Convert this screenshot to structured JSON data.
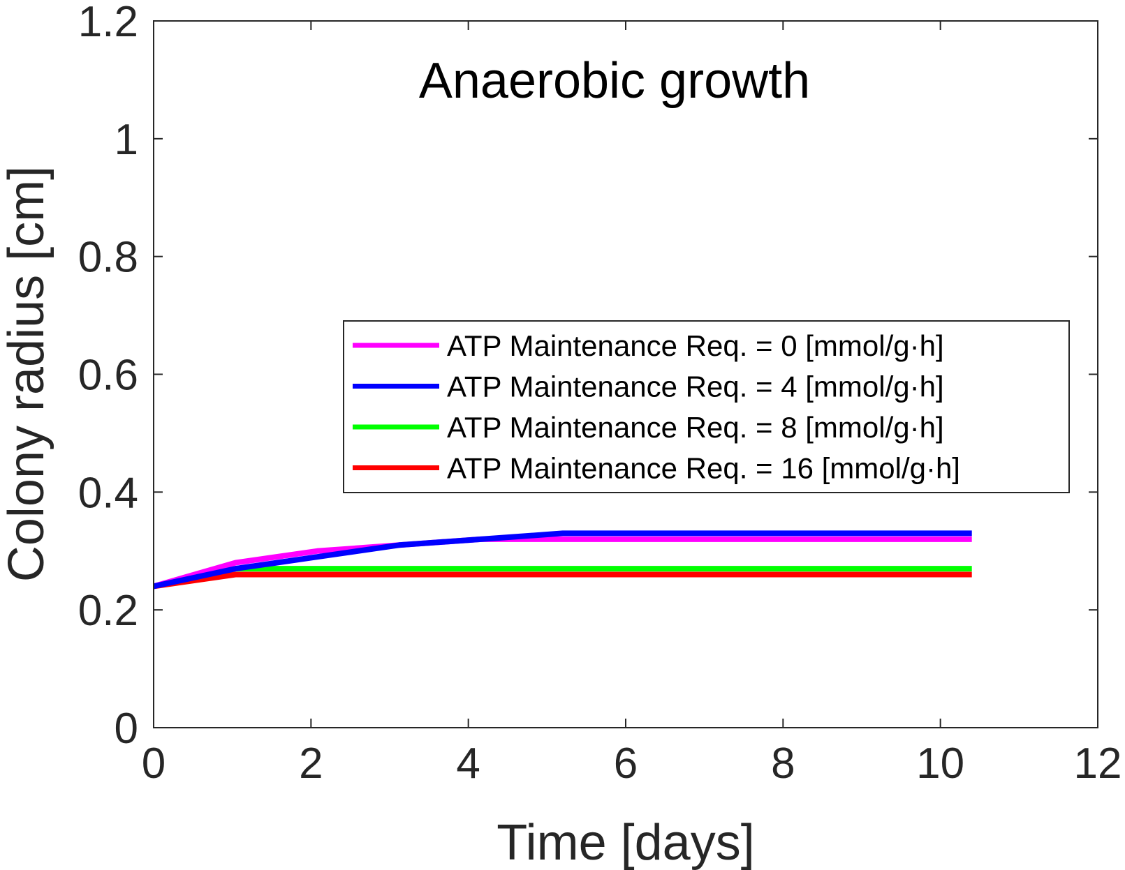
{
  "chart_data": {
    "type": "line",
    "title": "Anaerobic growth",
    "xlabel": "Time [days]",
    "ylabel": "Colony radius [cm]",
    "xlim": [
      0,
      12
    ],
    "ylim": [
      0,
      1.2
    ],
    "xticks": [
      0,
      2,
      4,
      6,
      8,
      10,
      12
    ],
    "yticks": [
      0,
      0.2,
      0.4,
      0.6,
      0.8,
      1,
      1.2
    ],
    "xtick_labels": [
      "0",
      "2",
      "4",
      "6",
      "8",
      "10",
      "12"
    ],
    "ytick_labels": [
      "0",
      "0.2",
      "0.4",
      "0.6",
      "0.8",
      "1",
      "1.2"
    ],
    "grid": false,
    "legend_position": "center-right",
    "series": [
      {
        "name": "ATP Maintenance Req. = 0 [mmol/g·h]",
        "color": "#ff00ff",
        "x": [
          0,
          1.04,
          2.08,
          3.12,
          4.16,
          5.2,
          6.24,
          7.28,
          8.32,
          9.36,
          10.4
        ],
        "y": [
          0.24,
          0.28,
          0.3,
          0.31,
          0.32,
          0.32,
          0.32,
          0.32,
          0.32,
          0.32,
          0.32
        ]
      },
      {
        "name": "ATP Maintenance Req. = 4 [mmol/g·h]",
        "color": "#0000ff",
        "x": [
          0,
          1.04,
          2.08,
          3.12,
          4.16,
          5.2,
          6.24,
          7.28,
          8.32,
          9.36,
          10.4
        ],
        "y": [
          0.24,
          0.27,
          0.29,
          0.31,
          0.32,
          0.33,
          0.33,
          0.33,
          0.33,
          0.33,
          0.33
        ]
      },
      {
        "name": "ATP Maintenance Req. = 8 [mmol/g·h]",
        "color": "#00ff00",
        "x": [
          0,
          1.04,
          2.08,
          3.12,
          4.16,
          5.2,
          6.24,
          7.28,
          8.32,
          9.36,
          10.4
        ],
        "y": [
          0.24,
          0.27,
          0.27,
          0.27,
          0.27,
          0.27,
          0.27,
          0.27,
          0.27,
          0.27,
          0.27
        ]
      },
      {
        "name": "ATP Maintenance Req. = 16 [mmol/g·h]",
        "color": "#ff0000",
        "x": [
          0,
          1.04,
          2.08,
          3.12,
          4.16,
          5.2,
          6.24,
          7.28,
          8.32,
          9.36,
          10.4
        ],
        "y": [
          0.24,
          0.26,
          0.26,
          0.26,
          0.26,
          0.26,
          0.26,
          0.26,
          0.26,
          0.26,
          0.26
        ]
      }
    ]
  }
}
